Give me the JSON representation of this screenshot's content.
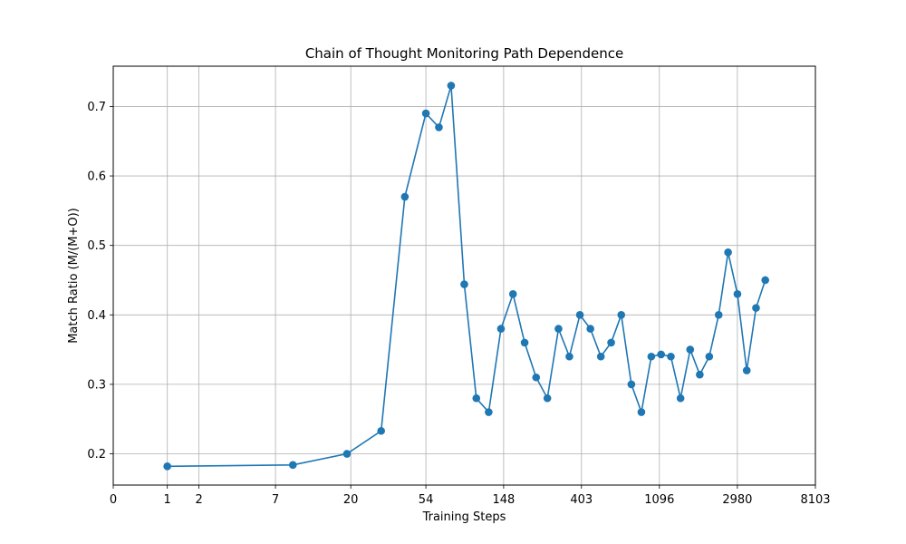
{
  "chart_data": {
    "type": "line",
    "title": "Chain of Thought Monitoring Path Dependence",
    "xlabel": "Training Steps",
    "ylabel": "Match Ratio (M/(M+O))",
    "x_scale": "log1p",
    "x_ticks": [
      0,
      1,
      2,
      7,
      20,
      54,
      148,
      403,
      1096,
      2980,
      8103
    ],
    "x_tick_labels": [
      "0",
      "1",
      "2",
      "7",
      "20",
      "54",
      "148",
      "403",
      "1096",
      "2980",
      "8103"
    ],
    "xlim": [
      0,
      8103
    ],
    "y_ticks": [
      0.2,
      0.3,
      0.4,
      0.5,
      0.6,
      0.7
    ],
    "y_tick_labels": [
      "0.2",
      "0.3",
      "0.4",
      "0.5",
      "0.6",
      "0.7"
    ],
    "ylim": [
      0.155,
      0.758
    ],
    "grid": true,
    "color": "#1f77b4",
    "series": [
      {
        "name": "",
        "points": [
          [
            1,
            0.182
          ],
          [
            9,
            0.184
          ],
          [
            19,
            0.2
          ],
          [
            30,
            0.233
          ],
          [
            41,
            0.57
          ],
          [
            54,
            0.69
          ],
          [
            64,
            0.67
          ],
          [
            75,
            0.73
          ],
          [
            89,
            0.444
          ],
          [
            104,
            0.28
          ],
          [
            122,
            0.26
          ],
          [
            143,
            0.38
          ],
          [
            167,
            0.43
          ],
          [
            194,
            0.36
          ],
          [
            225,
            0.31
          ],
          [
            260,
            0.28
          ],
          [
            300,
            0.38
          ],
          [
            345,
            0.34
          ],
          [
            395,
            0.4
          ],
          [
            452,
            0.38
          ],
          [
            517,
            0.34
          ],
          [
            590,
            0.36
          ],
          [
            672,
            0.4
          ],
          [
            765,
            0.3
          ],
          [
            870,
            0.26
          ],
          [
            988,
            0.34
          ],
          [
            1120,
            0.343
          ],
          [
            1270,
            0.34
          ],
          [
            1438,
            0.28
          ],
          [
            1627,
            0.35
          ],
          [
            1840,
            0.314
          ],
          [
            2078,
            0.34
          ],
          [
            2345,
            0.4
          ],
          [
            2645,
            0.49
          ],
          [
            2982,
            0.43
          ],
          [
            3360,
            0.32
          ],
          [
            3785,
            0.41
          ],
          [
            4262,
            0.45
          ]
        ]
      }
    ]
  }
}
